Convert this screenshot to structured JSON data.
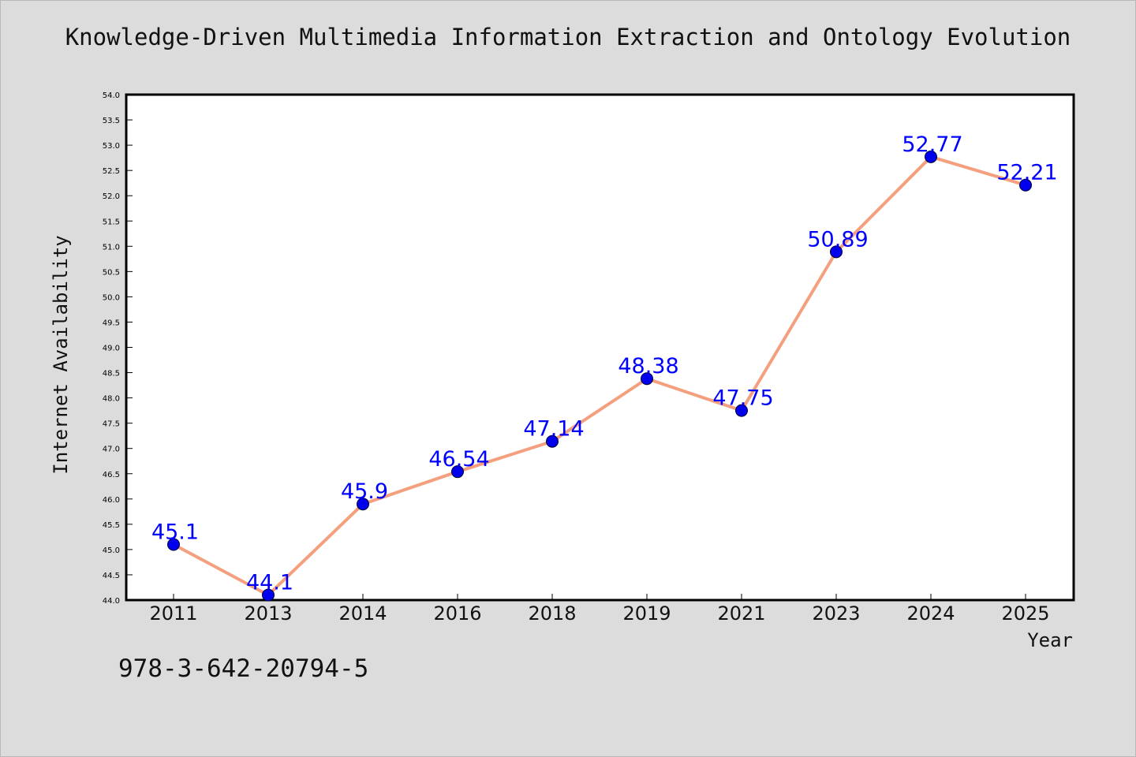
{
  "title": "Knowledge-Driven Multimedia Information Extraction and Ontology Evolution",
  "footer_code": "978-3-642-20794-5",
  "chart_data": {
    "type": "line",
    "title": "Knowledge-Driven Multimedia Information Extraction and Ontology Evolution",
    "xlabel": "Year",
    "ylabel": "Internet Availability",
    "categories": [
      "2011",
      "2013",
      "2014",
      "2016",
      "2018",
      "2019",
      "2021",
      "2023",
      "2024",
      "2025"
    ],
    "series": [
      {
        "values": [
          45.1,
          44.1,
          45.9,
          46.54,
          47.14,
          48.38,
          47.75,
          50.89,
          52.77,
          52.21
        ],
        "labels": [
          "45.1",
          "44.1",
          "45.9",
          "46.54",
          "47.14",
          "48.38",
          "47.75",
          "50.89",
          "52.77",
          "52.21"
        ]
      }
    ],
    "ylim": [
      44.0,
      54.0
    ],
    "ytick_step": 0.5,
    "grid": false,
    "colors": {
      "line": "#f4a07e",
      "marker": "#0000ee",
      "data_label": "#0000ff",
      "plot_bg": "#ffffff",
      "page_bg": "#dcdcdc"
    }
  }
}
